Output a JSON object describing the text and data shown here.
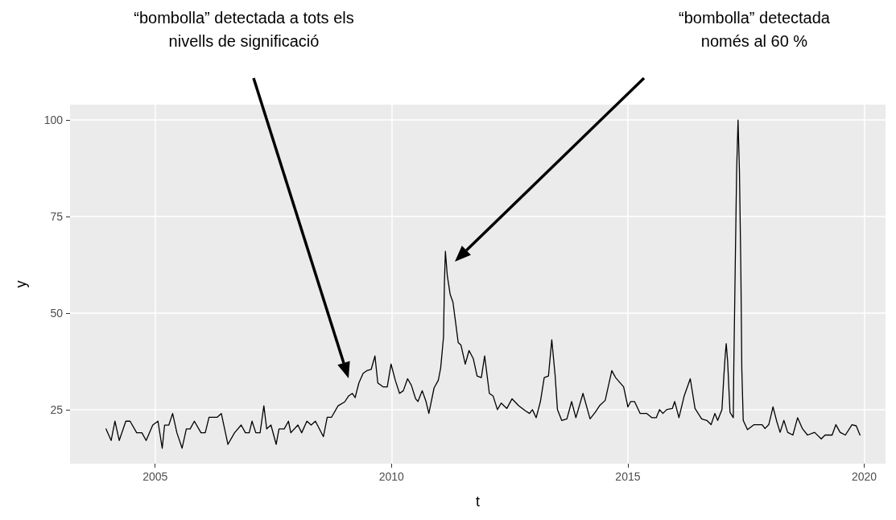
{
  "chart_data": {
    "type": "line",
    "xlabel": "t",
    "ylabel": "y",
    "color": "#000000",
    "marker": "none",
    "line_style": "solid",
    "grid": true,
    "xlim": [
      2003.2,
      2020.45
    ],
    "xticks": [
      2005,
      2010,
      2015,
      2020
    ],
    "ylim": [
      11,
      104
    ],
    "yticks": [
      25,
      50,
      75,
      100
    ],
    "annotations": [
      "“bombolla” detectada a tots els nivells de significació",
      "“bombolla” detectada només al 60 %"
    ],
    "x": [
      2003.96,
      2004.07,
      2004.15,
      2004.24,
      2004.38,
      2004.47,
      2004.61,
      2004.72,
      2004.81,
      2004.95,
      2005.06,
      2005.15,
      2005.2,
      2005.29,
      2005.37,
      2005.46,
      2005.57,
      2005.66,
      2005.74,
      2005.83,
      2005.97,
      2006.06,
      2006.14,
      2006.31,
      2006.4,
      2006.54,
      2006.68,
      2006.82,
      2006.91,
      2006.99,
      2007.05,
      2007.13,
      2007.22,
      2007.3,
      2007.36,
      2007.45,
      2007.56,
      2007.62,
      2007.73,
      2007.82,
      2007.87,
      2008.02,
      2008.1,
      2008.21,
      2008.3,
      2008.39,
      2008.56,
      2008.64,
      2008.73,
      2008.87,
      2009.01,
      2009.09,
      2009.17,
      2009.23,
      2009.31,
      2009.4,
      2009.48,
      2009.57,
      2009.65,
      2009.71,
      2009.82,
      2009.91,
      2009.99,
      2010.08,
      2010.17,
      2010.25,
      2010.34,
      2010.42,
      2010.51,
      2010.56,
      2010.65,
      2010.73,
      2010.79,
      2010.9,
      2010.99,
      2011.04,
      2011.1,
      2011.12,
      2011.14,
      2011.18,
      2011.24,
      2011.3,
      2011.36,
      2011.41,
      2011.47,
      2011.56,
      2011.64,
      2011.73,
      2011.81,
      2011.9,
      2011.97,
      2012.07,
      2012.15,
      2012.24,
      2012.32,
      2012.44,
      2012.55,
      2012.69,
      2012.83,
      2012.92,
      2012.98,
      2013.06,
      2013.15,
      2013.23,
      2013.32,
      2013.39,
      2013.46,
      2013.51,
      2013.6,
      2013.71,
      2013.81,
      2013.9,
      2014.05,
      2014.2,
      2014.31,
      2014.4,
      2014.52,
      2014.66,
      2014.74,
      2014.91,
      2015.0,
      2015.06,
      2015.14,
      2015.26,
      2015.4,
      2015.51,
      2015.6,
      2015.67,
      2015.74,
      2015.82,
      2015.94,
      2015.99,
      2016.08,
      2016.19,
      2016.32,
      2016.42,
      2016.56,
      2016.67,
      2016.76,
      2016.84,
      2016.9,
      2016.99,
      2017.03,
      2017.06,
      2017.08,
      2017.11,
      2017.16,
      2017.23,
      2017.24,
      2017.27,
      2017.3,
      2017.33,
      2017.36,
      2017.39,
      2017.41,
      2017.44,
      2017.53,
      2017.67,
      2017.84,
      2017.9,
      2017.98,
      2018.07,
      2018.15,
      2018.22,
      2018.3,
      2018.38,
      2018.49,
      2018.59,
      2018.69,
      2018.8,
      2018.95,
      2019.09,
      2019.17,
      2019.32,
      2019.4,
      2019.49,
      2019.6,
      2019.74,
      2019.83,
      2019.91
    ],
    "values": [
      20,
      17,
      22,
      17,
      22,
      22,
      19,
      19,
      17,
      21,
      22,
      15,
      21,
      21,
      24,
      19,
      15,
      20,
      20,
      22,
      19,
      19,
      23,
      23,
      24,
      16,
      19,
      21,
      19,
      19,
      22,
      19,
      19,
      26,
      20,
      21,
      16,
      20,
      20,
      22,
      19,
      21,
      19,
      22,
      21,
      22,
      18,
      23,
      23,
      26,
      27,
      28.5,
      29.2,
      28.1,
      31.9,
      34.4,
      35.1,
      35.4,
      38.9,
      31.9,
      30.9,
      30.9,
      36.8,
      32.6,
      29.2,
      29.9,
      33,
      31.3,
      27.8,
      27.1,
      29.9,
      27.1,
      24,
      30.6,
      32.6,
      35.8,
      43.8,
      58.3,
      66,
      59.7,
      54.9,
      52.8,
      47.2,
      42.4,
      41.7,
      36.8,
      40.3,
      38.2,
      33.7,
      33.3,
      38.9,
      29.2,
      28.5,
      25,
      26.7,
      25.3,
      27.8,
      26,
      24.7,
      24,
      25,
      22.9,
      27.1,
      33.3,
      33.7,
      43.1,
      34,
      25,
      22.2,
      22.6,
      27.1,
      22.9,
      29.2,
      22.6,
      24.3,
      26,
      27.4,
      35.1,
      33.3,
      30.9,
      25.7,
      27.1,
      27.1,
      24,
      24,
      22.9,
      22.9,
      25,
      24,
      25,
      25.3,
      27.1,
      22.9,
      28.5,
      33,
      25.3,
      22.6,
      22.2,
      21.1,
      24,
      22.2,
      25,
      33.7,
      39.3,
      42.1,
      37.5,
      24.3,
      22.9,
      35.8,
      61.5,
      86.8,
      100,
      86.8,
      61.1,
      35.4,
      22.2,
      19.8,
      21.1,
      21.1,
      20.1,
      21.1,
      25.7,
      21.9,
      19.1,
      22.2,
      19.1,
      18.4,
      22.9,
      20.1,
      18.4,
      19.1,
      17.4,
      18.4,
      18.4,
      21.1,
      19.1,
      18.4,
      21.1,
      20.8,
      18.4
    ]
  }
}
